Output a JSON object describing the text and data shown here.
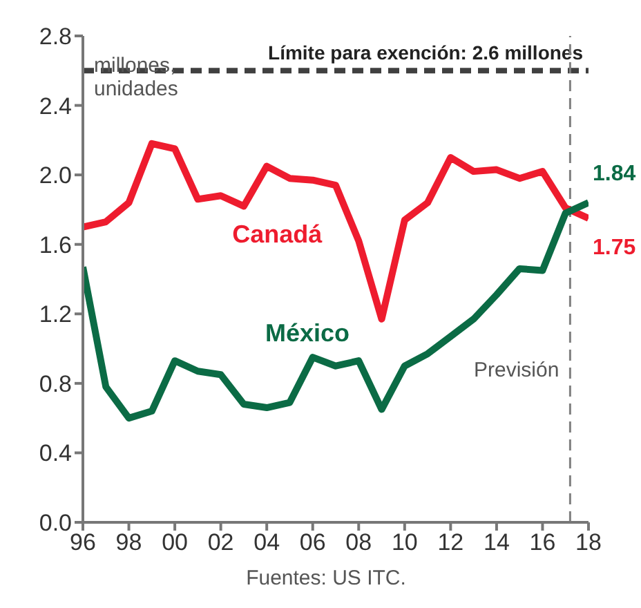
{
  "chart_data": {
    "type": "line",
    "ylabel": "millones, unidades",
    "x": [
      1996,
      1997,
      1998,
      1999,
      2000,
      2001,
      2002,
      2003,
      2004,
      2005,
      2006,
      2007,
      2008,
      2009,
      2010,
      2011,
      2012,
      2013,
      2014,
      2015,
      2016,
      2017,
      2018
    ],
    "series": [
      {
        "name": "Canadá",
        "color": "#ee1c2e",
        "values": [
          1.7,
          1.73,
          1.84,
          2.18,
          2.15,
          1.86,
          1.88,
          1.82,
          2.05,
          1.98,
          1.97,
          1.94,
          1.62,
          1.17,
          1.74,
          1.84,
          2.1,
          2.02,
          2.03,
          1.98,
          2.02,
          1.81,
          1.75
        ],
        "value_labels": [
          null,
          null,
          null,
          null,
          null,
          null,
          null,
          null,
          null,
          null,
          null,
          null,
          null,
          null,
          null,
          null,
          null,
          null,
          null,
          null,
          null,
          null,
          "1.75"
        ]
      },
      {
        "name": "México",
        "color": "#0b6b45",
        "values": [
          1.47,
          0.78,
          0.6,
          0.64,
          0.93,
          0.87,
          0.85,
          0.68,
          0.66,
          0.69,
          0.95,
          0.9,
          0.93,
          0.65,
          0.9,
          0.97,
          1.07,
          1.17,
          1.31,
          1.46,
          1.45,
          1.78,
          1.84
        ],
        "value_labels": [
          null,
          null,
          null,
          null,
          null,
          null,
          null,
          null,
          null,
          null,
          null,
          null,
          null,
          null,
          null,
          null,
          null,
          null,
          null,
          null,
          null,
          null,
          "1.84"
        ]
      }
    ],
    "xlim": [
      1996,
      2018
    ],
    "xticks": [
      {
        "value": 1996,
        "label": "96"
      },
      {
        "value": 1998,
        "label": "98"
      },
      {
        "value": 2000,
        "label": "00"
      },
      {
        "value": 2002,
        "label": "02"
      },
      {
        "value": 2004,
        "label": "04"
      },
      {
        "value": 2006,
        "label": "06"
      },
      {
        "value": 2008,
        "label": "08"
      },
      {
        "value": 2010,
        "label": "10"
      },
      {
        "value": 2012,
        "label": "12"
      },
      {
        "value": 2014,
        "label": "14"
      },
      {
        "value": 2016,
        "label": "16"
      },
      {
        "value": 2018,
        "label": "18"
      }
    ],
    "ylim": [
      0,
      2.8
    ],
    "yticks": [
      {
        "value": 0,
        "label": "0.0"
      },
      {
        "value": 0.4,
        "label": "0.4"
      },
      {
        "value": 0.8,
        "label": "0.8"
      },
      {
        "value": 1.2,
        "label": "1.2"
      },
      {
        "value": 1.6,
        "label": "1.6"
      },
      {
        "value": 2.0,
        "label": "2.0"
      },
      {
        "value": 2.4,
        "label": "2.4"
      },
      {
        "value": 2.8,
        "label": "2.8"
      }
    ],
    "ref_lines": [
      {
        "axis": "y",
        "value": 2.6,
        "label": "Límite para exención: 2.6 millones",
        "color": "#404040",
        "line_style": "dashed"
      },
      {
        "axis": "x",
        "value": 2017.2,
        "label": "Previsión",
        "color": "#808080",
        "line_style": "dashed"
      }
    ],
    "grid": false,
    "legend": false,
    "marker": "none",
    "line_style": "solid",
    "annotations": [
      "Fuentes: US ITC."
    ]
  }
}
